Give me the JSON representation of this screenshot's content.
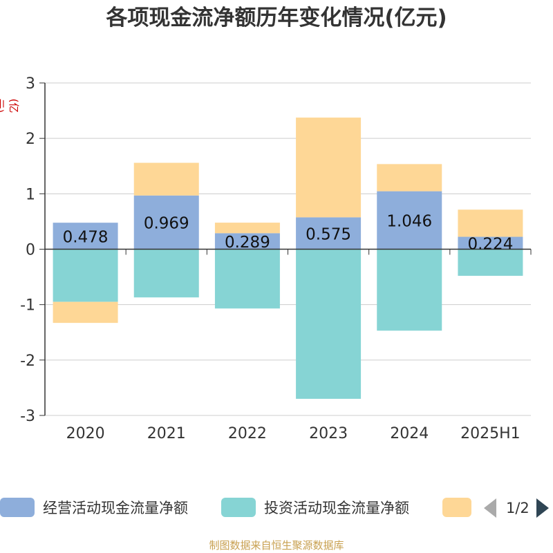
{
  "title": "各项现金流净额历年变化情况(亿元)",
  "unit_label": "(亿元)",
  "source": "制图数据来自恒生聚源数据库",
  "legend": {
    "items": [
      {
        "label": "经营活动现金流量净额",
        "color": "#8eaedb"
      },
      {
        "label": "投资活动现金流量净额",
        "color": "#86d4d4"
      },
      {
        "label": "",
        "color": "#fed796"
      }
    ],
    "page": "1/2"
  },
  "chart_data": {
    "type": "bar",
    "stacked": true,
    "categories": [
      "2020",
      "2021",
      "2022",
      "2023",
      "2024",
      "2025H1"
    ],
    "ylim": [
      -3,
      3
    ],
    "yticks": [
      3,
      2,
      1,
      0,
      -1,
      -2,
      -3
    ],
    "grid": true,
    "legend_position": "bottom",
    "series": [
      {
        "name": "经营活动现金流量净额",
        "color": "#8eaedb",
        "values": [
          0.478,
          0.969,
          0.289,
          0.575,
          1.046,
          0.224
        ],
        "labels": [
          "0.478",
          "0.969",
          "0.289",
          "0.575",
          "1.046",
          "0.224"
        ]
      },
      {
        "name": "投资活动现金流量净额",
        "color": "#86d4d4",
        "values": [
          -0.95,
          -0.87,
          -1.07,
          -2.7,
          -1.47,
          -0.48
        ]
      },
      {
        "color": "#fed796",
        "values": [
          -0.38,
          0.59,
          0.19,
          1.8,
          0.49,
          0.49
        ]
      }
    ]
  }
}
